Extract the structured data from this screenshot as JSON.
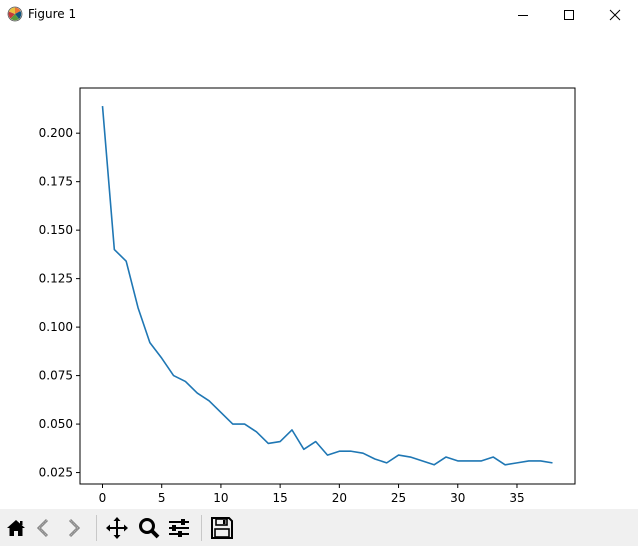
{
  "window": {
    "title": "Figure 1",
    "controls": [
      "minimize-icon",
      "maximize-icon",
      "close-icon"
    ]
  },
  "toolbar": {
    "buttons": [
      "home-icon",
      "back-icon",
      "forward-icon",
      "pan-icon",
      "zoom-icon",
      "configure-subplots-icon",
      "save-icon"
    ]
  },
  "chart_data": {
    "type": "line",
    "title": "",
    "xlabel": "",
    "ylabel": "",
    "xlim": [
      -1.9,
      39.9
    ],
    "ylim": [
      0.0191,
      0.2233
    ],
    "xticks": [
      0,
      5,
      10,
      15,
      20,
      25,
      30,
      35
    ],
    "xtick_labels": [
      "0",
      "5",
      "10",
      "15",
      "20",
      "25",
      "30",
      "35"
    ],
    "yticks": [
      0.025,
      0.05,
      0.075,
      0.1,
      0.125,
      0.15,
      0.175,
      0.2
    ],
    "ytick_labels": [
      "0.025",
      "0.050",
      "0.075",
      "0.100",
      "0.125",
      "0.150",
      "0.175",
      "0.200"
    ],
    "grid": false,
    "series": [
      {
        "color": "#1f77b4",
        "x": [
          0,
          1,
          2,
          3,
          4,
          5,
          6,
          7,
          8,
          9,
          10,
          11,
          12,
          13,
          14,
          15,
          16,
          17,
          18,
          19,
          20,
          21,
          22,
          23,
          24,
          25,
          26,
          27,
          28,
          29,
          30,
          31,
          32,
          33,
          34,
          35,
          36,
          37,
          38
        ],
        "y": [
          0.214,
          0.14,
          0.134,
          0.11,
          0.092,
          0.084,
          0.075,
          0.072,
          0.066,
          0.062,
          0.056,
          0.05,
          0.05,
          0.046,
          0.04,
          0.041,
          0.047,
          0.037,
          0.041,
          0.034,
          0.036,
          0.036,
          0.035,
          0.032,
          0.03,
          0.034,
          0.033,
          0.031,
          0.029,
          0.033,
          0.031,
          0.031,
          0.031,
          0.033,
          0.029,
          0.03,
          0.031,
          0.031,
          0.03
        ]
      }
    ]
  }
}
